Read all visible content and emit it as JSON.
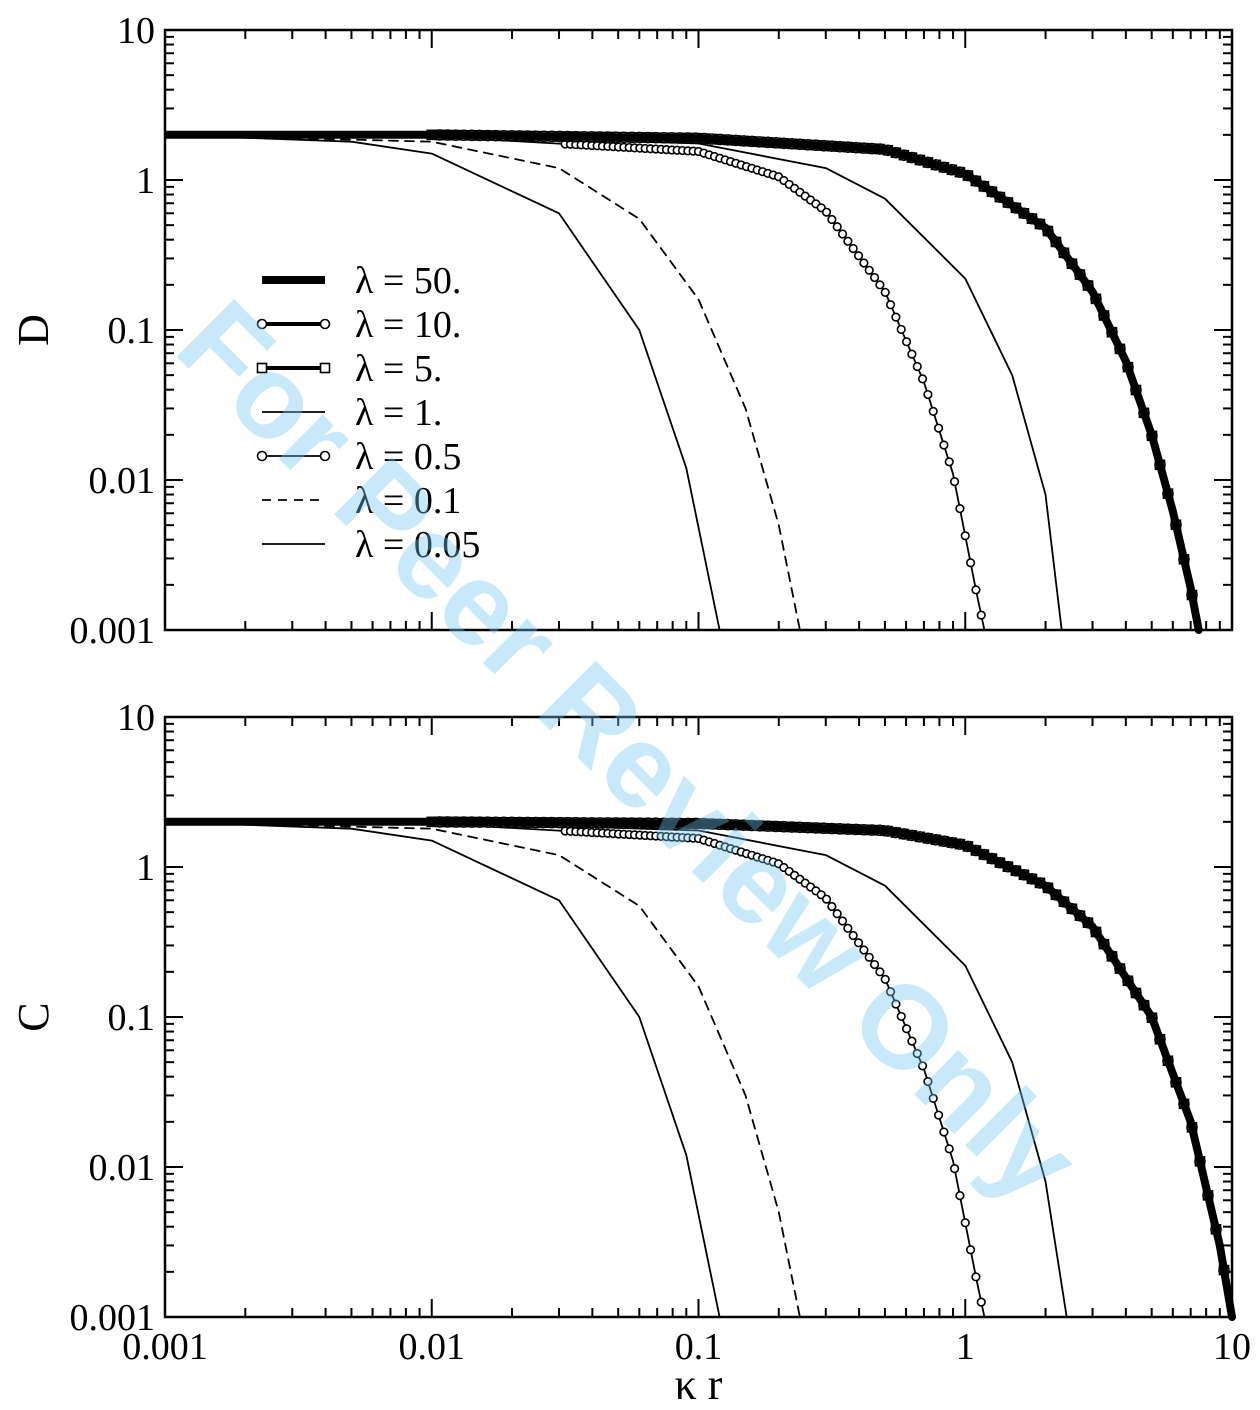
{
  "watermark": "For Peer Review Only",
  "chart_data": [
    {
      "type": "line",
      "panel": "top",
      "ylabel": "D",
      "xlabel": "",
      "xscale": "log",
      "yscale": "log",
      "xlim": [
        0.001,
        10
      ],
      "ylim": [
        0.001,
        10
      ],
      "x_tick_labels": [],
      "y_tick_labels": [
        "10",
        "1",
        "0.1",
        "0.01",
        "0.001"
      ],
      "legend_position": "left-middle",
      "series": [
        {
          "name": "λ = 50.",
          "style": "thick",
          "x": [
            0.001,
            0.01,
            0.1,
            0.5,
            1,
            2,
            3,
            4,
            5,
            6,
            7,
            7.5
          ],
          "y": [
            2,
            2,
            1.9,
            1.6,
            1.1,
            0.48,
            0.18,
            0.062,
            0.02,
            0.0062,
            0.0019,
            0.001
          ]
        },
        {
          "name": "λ = 10.",
          "style": "thick-circle",
          "x": [
            0.001,
            0.01,
            0.1,
            0.5,
            1,
            2,
            3,
            4,
            5,
            6,
            7,
            7.5
          ],
          "y": [
            2,
            2,
            1.9,
            1.6,
            1.1,
            0.48,
            0.18,
            0.062,
            0.02,
            0.0062,
            0.0019,
            0.001
          ]
        },
        {
          "name": "λ = 5.",
          "style": "thick-square",
          "x": [
            0.001,
            0.01,
            0.1,
            0.5,
            1,
            2,
            3,
            4,
            5,
            6,
            7,
            7.5
          ],
          "y": [
            2,
            2,
            1.9,
            1.6,
            1.1,
            0.48,
            0.18,
            0.062,
            0.02,
            0.0062,
            0.0019,
            0.001
          ]
        },
        {
          "name": "λ = 1.",
          "style": "thin",
          "x": [
            0.001,
            0.01,
            0.1,
            0.3,
            0.5,
            1,
            1.5,
            2,
            2.3
          ],
          "y": [
            2,
            2,
            1.75,
            1.2,
            0.75,
            0.22,
            0.05,
            0.008,
            0.001
          ]
        },
        {
          "name": "λ = 0.5",
          "style": "thin-circle",
          "x": [
            0.001,
            0.01,
            0.1,
            0.2,
            0.3,
            0.5,
            0.7,
            0.9,
            1.1,
            1.18
          ],
          "y": [
            2,
            1.95,
            1.55,
            1.05,
            0.62,
            0.18,
            0.045,
            0.011,
            0.0018,
            0.001
          ]
        },
        {
          "name": "λ = 0.1",
          "style": "dashed",
          "x": [
            0.001,
            0.01,
            0.03,
            0.06,
            0.1,
            0.15,
            0.2,
            0.24
          ],
          "y": [
            2,
            1.8,
            1.2,
            0.55,
            0.16,
            0.03,
            0.005,
            0.001
          ]
        },
        {
          "name": "λ = 0.05",
          "style": "thin",
          "x": [
            0.001,
            0.005,
            0.01,
            0.03,
            0.06,
            0.09,
            0.12
          ],
          "y": [
            2,
            1.8,
            1.5,
            0.6,
            0.1,
            0.012,
            0.001
          ]
        }
      ]
    },
    {
      "type": "line",
      "panel": "bottom",
      "ylabel": "C",
      "xlabel": "κ r",
      "xscale": "log",
      "yscale": "log",
      "xlim": [
        0.001,
        10
      ],
      "ylim": [
        0.001,
        10
      ],
      "x_tick_labels": [
        "0.001",
        "0.01",
        "0.1",
        "1",
        "10"
      ],
      "y_tick_labels": [
        "10",
        "1",
        "0.1",
        "0.01",
        "0.001"
      ],
      "series": [
        {
          "name": "λ = 50.",
          "style": "thick",
          "x": [
            0.001,
            0.01,
            0.1,
            0.5,
            1,
            2,
            3,
            5,
            7,
            9,
            10
          ],
          "y": [
            2,
            2,
            1.95,
            1.75,
            1.4,
            0.75,
            0.4,
            0.1,
            0.02,
            0.003,
            0.001
          ]
        },
        {
          "name": "λ = 10.",
          "style": "thick-circle",
          "x": [
            0.001,
            0.01,
            0.1,
            0.5,
            1,
            2,
            3,
            5,
            7,
            9,
            10
          ],
          "y": [
            2,
            2,
            1.95,
            1.75,
            1.4,
            0.75,
            0.4,
            0.1,
            0.02,
            0.003,
            0.001
          ]
        },
        {
          "name": "λ = 5.",
          "style": "thick-square",
          "x": [
            0.001,
            0.01,
            0.1,
            0.5,
            1,
            2,
            3,
            5,
            7,
            9,
            10
          ],
          "y": [
            2,
            2,
            1.95,
            1.75,
            1.4,
            0.75,
            0.4,
            0.1,
            0.02,
            0.003,
            0.001
          ]
        },
        {
          "name": "λ = 1.",
          "style": "thin",
          "x": [
            0.001,
            0.01,
            0.1,
            0.3,
            0.5,
            1,
            1.5,
            2,
            2.4
          ],
          "y": [
            2,
            2,
            1.75,
            1.2,
            0.75,
            0.22,
            0.05,
            0.008,
            0.001
          ]
        },
        {
          "name": "λ = 0.5",
          "style": "thin-circle",
          "x": [
            0.001,
            0.01,
            0.1,
            0.2,
            0.3,
            0.5,
            0.7,
            0.9,
            1.1,
            1.18
          ],
          "y": [
            2,
            1.95,
            1.55,
            1.05,
            0.62,
            0.18,
            0.045,
            0.011,
            0.0018,
            0.001
          ]
        },
        {
          "name": "λ = 0.1",
          "style": "dashed",
          "x": [
            0.001,
            0.01,
            0.03,
            0.06,
            0.1,
            0.15,
            0.2,
            0.24
          ],
          "y": [
            2,
            1.8,
            1.2,
            0.55,
            0.16,
            0.03,
            0.005,
            0.001
          ]
        },
        {
          "name": "λ = 0.05",
          "style": "thin",
          "x": [
            0.001,
            0.005,
            0.01,
            0.03,
            0.06,
            0.09,
            0.12
          ],
          "y": [
            2,
            1.8,
            1.5,
            0.6,
            0.1,
            0.012,
            0.001
          ]
        }
      ]
    }
  ]
}
